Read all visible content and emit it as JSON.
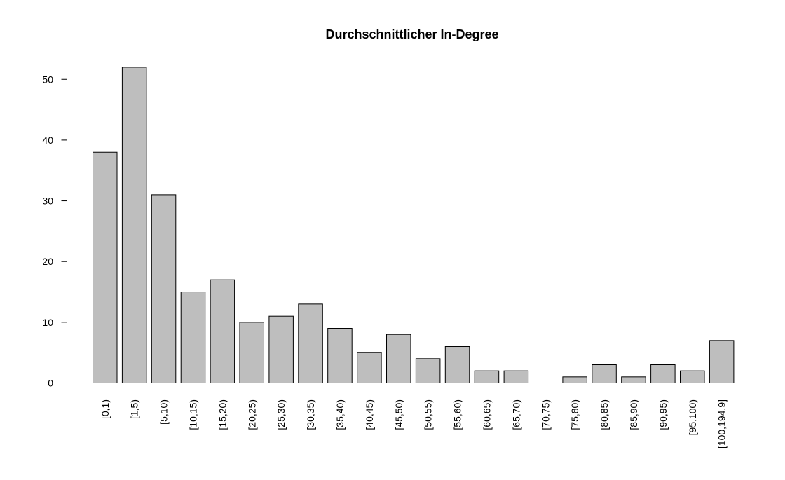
{
  "chart_data": {
    "type": "bar",
    "title": "Durchschnittlicher In-Degree",
    "xlabel": "",
    "ylabel": "",
    "categories": [
      "[0,1)",
      "[1,5)",
      "[5,10)",
      "[10,15)",
      "[15,20)",
      "[20,25)",
      "[25,30)",
      "[30,35)",
      "[35,40)",
      "[40,45)",
      "[45,50)",
      "[50,55)",
      "[55,60)",
      "[60,65)",
      "[65,70)",
      "[70,75)",
      "[75,80)",
      "[80,85)",
      "[85,90)",
      "[90,95)",
      "[95,100)",
      "[100,194.9]"
    ],
    "values": [
      38,
      52,
      31,
      15,
      17,
      10,
      11,
      13,
      9,
      5,
      8,
      4,
      6,
      2,
      2,
      0,
      1,
      3,
      1,
      3,
      2,
      7
    ],
    "ylim": [
      0,
      52
    ],
    "yticks": [
      0,
      10,
      20,
      30,
      40,
      50
    ],
    "ytick_labels": [
      "0",
      "10",
      "20",
      "30",
      "40",
      "50"
    ],
    "grid": false,
    "bar_color": "#bebebe",
    "bar_border_color": "#000000"
  }
}
